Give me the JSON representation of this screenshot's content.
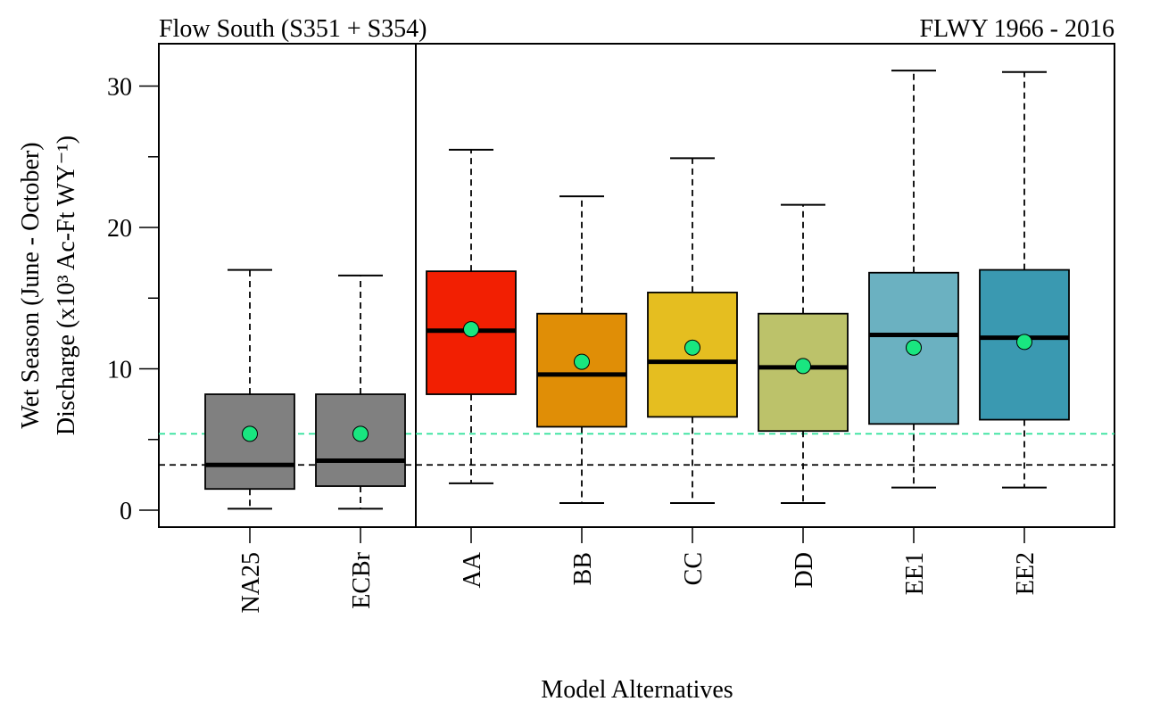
{
  "chart_data": {
    "type": "box",
    "title_left": "Flow South (S351 + S354)",
    "title_right": "FLWY 1966 - 2016",
    "xlabel": "Model Alternatives",
    "ylabel_line1": "Wet Season (June - October)",
    "ylabel_line2": "Discharge (x10³ Ac-Ft WY⁻¹)",
    "ylim": [
      -1.2,
      33
    ],
    "yticks": [
      0,
      10,
      20,
      30
    ],
    "categories": [
      "NA25",
      "ECBr",
      "AA",
      "BB",
      "CC",
      "DD",
      "EE1",
      "EE2"
    ],
    "boxes": [
      {
        "name": "NA25",
        "min": 0.1,
        "q1": 1.5,
        "median": 3.2,
        "q3": 8.2,
        "max": 17.0,
        "mean": 5.4,
        "color": "#808080"
      },
      {
        "name": "ECBr",
        "min": 0.1,
        "q1": 1.7,
        "median": 3.5,
        "q3": 8.2,
        "max": 16.6,
        "mean": 5.4,
        "color": "#808080"
      },
      {
        "name": "AA",
        "min": 1.9,
        "q1": 8.2,
        "median": 12.7,
        "q3": 16.9,
        "max": 25.5,
        "mean": 12.8,
        "color": "#F21F02"
      },
      {
        "name": "BB",
        "min": 0.5,
        "q1": 5.9,
        "median": 9.6,
        "q3": 13.9,
        "max": 22.2,
        "mean": 10.5,
        "color": "#E08E06"
      },
      {
        "name": "CC",
        "min": 0.5,
        "q1": 6.6,
        "median": 10.5,
        "q3": 15.4,
        "max": 24.9,
        "mean": 11.5,
        "color": "#E5BE20"
      },
      {
        "name": "DD",
        "min": 0.5,
        "q1": 5.6,
        "median": 10.1,
        "q3": 13.9,
        "max": 21.6,
        "mean": 10.2,
        "color": "#BCC26A"
      },
      {
        "name": "EE1",
        "min": 1.6,
        "q1": 6.1,
        "median": 12.4,
        "q3": 16.8,
        "max": 31.1,
        "mean": 11.5,
        "color": "#6BB1C1"
      },
      {
        "name": "EE2",
        "min": 1.6,
        "q1": 6.4,
        "median": 12.2,
        "q3": 17.0,
        "max": 31.0,
        "mean": 11.9,
        "color": "#3A99B1"
      }
    ],
    "reference_lines": [
      {
        "name": "baseline-median",
        "value": 3.2,
        "color": "#000000"
      },
      {
        "name": "baseline-mean",
        "value": 5.4,
        "color": "#2BE098"
      }
    ],
    "mean_marker_color": "#19E680",
    "group_divider_after": "ECBr",
    "grid": false,
    "legend": "none"
  }
}
